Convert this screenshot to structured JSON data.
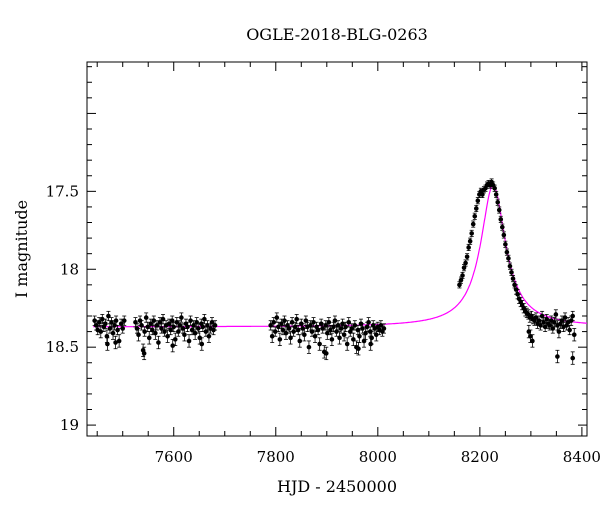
{
  "chart_data": {
    "type": "scatter",
    "title": "OGLE-2018-BLG-0263",
    "xlabel": "HJD - 2450000",
    "ylabel": "I magnitude",
    "xlim": [
      7430,
      8410
    ],
    "ylim": [
      19.07,
      16.67
    ],
    "y_inverted": true,
    "x_ticks": [
      7600,
      7800,
      8000,
      8200,
      8400
    ],
    "x_tick_labels": [
      "7600",
      "7800",
      "8000",
      "8200",
      "8400"
    ],
    "y_ticks": [
      17.5,
      18,
      18.5,
      19
    ],
    "y_tick_labels": [
      "17.5",
      "18",
      "18.5",
      "19"
    ],
    "grid": false,
    "colors": {
      "data": "#000000",
      "model": "#ff00ff"
    },
    "model": {
      "name": "",
      "baseline_mag": 18.37,
      "peak_hjd": 8226,
      "peak_mag": 17.46,
      "width_days": 24
    },
    "series": [
      {
        "name": "",
        "marker": "filled-circle-with-errorbars",
        "points": [
          [
            7445,
            18.33,
            0.03
          ],
          [
            7448,
            18.36,
            0.03
          ],
          [
            7451,
            18.39,
            0.03
          ],
          [
            7454,
            18.34,
            0.03
          ],
          [
            7457,
            18.4,
            0.04
          ],
          [
            7460,
            18.32,
            0.03
          ],
          [
            7463,
            18.37,
            0.03
          ],
          [
            7466,
            18.35,
            0.03
          ],
          [
            7469,
            18.43,
            0.04
          ],
          [
            7472,
            18.3,
            0.03
          ],
          [
            7475,
            18.38,
            0.03
          ],
          [
            7478,
            18.34,
            0.03
          ],
          [
            7481,
            18.41,
            0.04
          ],
          [
            7484,
            18.36,
            0.03
          ],
          [
            7487,
            18.33,
            0.03
          ],
          [
            7490,
            18.39,
            0.03
          ],
          [
            7493,
            18.46,
            0.04
          ],
          [
            7497,
            18.35,
            0.03
          ],
          [
            7500,
            18.38,
            0.03
          ],
          [
            7503,
            18.33,
            0.03
          ],
          [
            7470,
            18.48,
            0.04
          ],
          [
            7486,
            18.47,
            0.04
          ],
          [
            7525,
            18.34,
            0.03
          ],
          [
            7528,
            18.38,
            0.03
          ],
          [
            7531,
            18.42,
            0.04
          ],
          [
            7534,
            18.33,
            0.03
          ],
          [
            7537,
            18.36,
            0.03
          ],
          [
            7540,
            18.52,
            0.04
          ],
          [
            7543,
            18.4,
            0.03
          ],
          [
            7546,
            18.31,
            0.03
          ],
          [
            7549,
            18.37,
            0.03
          ],
          [
            7552,
            18.44,
            0.04
          ],
          [
            7555,
            18.35,
            0.03
          ],
          [
            7558,
            18.39,
            0.03
          ],
          [
            7561,
            18.33,
            0.03
          ],
          [
            7564,
            18.41,
            0.04
          ],
          [
            7567,
            18.36,
            0.03
          ],
          [
            7570,
            18.47,
            0.04
          ],
          [
            7573,
            18.34,
            0.03
          ],
          [
            7576,
            18.38,
            0.03
          ],
          [
            7579,
            18.32,
            0.03
          ],
          [
            7582,
            18.4,
            0.03
          ],
          [
            7585,
            18.36,
            0.03
          ],
          [
            7588,
            18.43,
            0.04
          ],
          [
            7591,
            18.35,
            0.03
          ],
          [
            7594,
            18.39,
            0.03
          ],
          [
            7597,
            18.33,
            0.03
          ],
          [
            7600,
            18.37,
            0.03
          ],
          [
            7603,
            18.45,
            0.04
          ],
          [
            7606,
            18.34,
            0.03
          ],
          [
            7609,
            18.4,
            0.03
          ],
          [
            7612,
            18.36,
            0.03
          ],
          [
            7615,
            18.31,
            0.03
          ],
          [
            7618,
            18.38,
            0.03
          ],
          [
            7621,
            18.42,
            0.04
          ],
          [
            7624,
            18.35,
            0.03
          ],
          [
            7627,
            18.37,
            0.03
          ],
          [
            7630,
            18.46,
            0.04
          ],
          [
            7633,
            18.33,
            0.03
          ],
          [
            7636,
            18.39,
            0.03
          ],
          [
            7639,
            18.36,
            0.03
          ],
          [
            7642,
            18.41,
            0.04
          ],
          [
            7645,
            18.34,
            0.03
          ],
          [
            7648,
            18.38,
            0.03
          ],
          [
            7651,
            18.44,
            0.04
          ],
          [
            7654,
            18.35,
            0.03
          ],
          [
            7657,
            18.37,
            0.03
          ],
          [
            7660,
            18.32,
            0.03
          ],
          [
            7663,
            18.4,
            0.03
          ],
          [
            7666,
            18.36,
            0.03
          ],
          [
            7669,
            18.43,
            0.04
          ],
          [
            7672,
            18.38,
            0.03
          ],
          [
            7675,
            18.34,
            0.03
          ],
          [
            7678,
            18.39,
            0.03
          ],
          [
            7681,
            18.36,
            0.03
          ],
          [
            7542,
            18.54,
            0.04
          ],
          [
            7598,
            18.49,
            0.04
          ],
          [
            7655,
            18.48,
            0.04
          ],
          [
            7790,
            18.36,
            0.03
          ],
          [
            7793,
            18.43,
            0.04
          ],
          [
            7796,
            18.34,
            0.03
          ],
          [
            7799,
            18.4,
            0.03
          ],
          [
            7802,
            18.31,
            0.03
          ],
          [
            7805,
            18.37,
            0.03
          ],
          [
            7808,
            18.45,
            0.04
          ],
          [
            7811,
            18.35,
            0.03
          ],
          [
            7814,
            18.39,
            0.03
          ],
          [
            7817,
            18.33,
            0.03
          ],
          [
            7820,
            18.41,
            0.04
          ],
          [
            7823,
            18.36,
            0.03
          ],
          [
            7826,
            18.38,
            0.03
          ],
          [
            7829,
            18.44,
            0.04
          ],
          [
            7832,
            18.34,
            0.03
          ],
          [
            7835,
            18.4,
            0.03
          ],
          [
            7838,
            18.37,
            0.03
          ],
          [
            7841,
            18.32,
            0.03
          ],
          [
            7844,
            18.39,
            0.03
          ],
          [
            7847,
            18.46,
            0.04
          ],
          [
            7850,
            18.35,
            0.03
          ],
          [
            7853,
            18.38,
            0.03
          ],
          [
            7856,
            18.42,
            0.04
          ],
          [
            7859,
            18.33,
            0.03
          ],
          [
            7862,
            18.37,
            0.03
          ],
          [
            7865,
            18.5,
            0.04
          ],
          [
            7868,
            18.36,
            0.03
          ],
          [
            7871,
            18.4,
            0.03
          ],
          [
            7874,
            18.34,
            0.03
          ],
          [
            7877,
            18.43,
            0.04
          ],
          [
            7880,
            18.37,
            0.03
          ],
          [
            7883,
            18.39,
            0.03
          ],
          [
            7886,
            18.48,
            0.04
          ],
          [
            7889,
            18.35,
            0.03
          ],
          [
            7892,
            18.38,
            0.03
          ],
          [
            7895,
            18.53,
            0.04
          ],
          [
            7898,
            18.36,
            0.03
          ],
          [
            7901,
            18.41,
            0.04
          ],
          [
            7904,
            18.34,
            0.03
          ],
          [
            7907,
            18.39,
            0.03
          ],
          [
            7910,
            18.45,
            0.04
          ],
          [
            7913,
            18.37,
            0.03
          ],
          [
            7916,
            18.33,
            0.03
          ],
          [
            7919,
            18.4,
            0.03
          ],
          [
            7922,
            18.36,
            0.03
          ],
          [
            7925,
            18.44,
            0.04
          ],
          [
            7928,
            18.38,
            0.03
          ],
          [
            7931,
            18.35,
            0.03
          ],
          [
            7934,
            18.42,
            0.04
          ],
          [
            7937,
            18.37,
            0.03
          ],
          [
            7940,
            18.48,
            0.04
          ],
          [
            7943,
            18.34,
            0.03
          ],
          [
            7946,
            18.4,
            0.03
          ],
          [
            7949,
            18.38,
            0.03
          ],
          [
            7952,
            18.45,
            0.04
          ],
          [
            7955,
            18.36,
            0.03
          ],
          [
            7958,
            18.5,
            0.04
          ],
          [
            7961,
            18.39,
            0.03
          ],
          [
            7964,
            18.43,
            0.04
          ],
          [
            7967,
            18.35,
            0.03
          ],
          [
            7970,
            18.38,
            0.03
          ],
          [
            7973,
            18.46,
            0.04
          ],
          [
            7976,
            18.41,
            0.04
          ],
          [
            7979,
            18.37,
            0.03
          ],
          [
            7982,
            18.34,
            0.03
          ],
          [
            7985,
            18.4,
            0.03
          ],
          [
            7988,
            18.44,
            0.04
          ],
          [
            7991,
            18.36,
            0.03
          ],
          [
            7994,
            18.38,
            0.03
          ],
          [
            7997,
            18.42,
            0.04
          ],
          [
            8000,
            18.37,
            0.03
          ],
          [
            8003,
            18.39,
            0.03
          ],
          [
            8006,
            18.36,
            0.03
          ],
          [
            8009,
            18.4,
            0.03
          ],
          [
            8012,
            18.38,
            0.03
          ],
          [
            7899,
            18.54,
            0.04
          ],
          [
            7962,
            18.51,
            0.04
          ],
          [
            7986,
            18.48,
            0.04
          ],
          [
            8160,
            18.1,
            0.02
          ],
          [
            8163,
            18.07,
            0.02
          ],
          [
            8166,
            18.04,
            0.02
          ],
          [
            8169,
            17.99,
            0.02
          ],
          [
            8172,
            17.96,
            0.02
          ],
          [
            8175,
            17.92,
            0.02
          ],
          [
            8178,
            17.86,
            0.02
          ],
          [
            8181,
            17.82,
            0.02
          ],
          [
            8184,
            17.77,
            0.02
          ],
          [
            8187,
            17.71,
            0.02
          ],
          [
            8190,
            17.66,
            0.02
          ],
          [
            8193,
            17.61,
            0.02
          ],
          [
            8196,
            17.56,
            0.02
          ],
          [
            8199,
            17.52,
            0.02
          ],
          [
            8202,
            17.5,
            0.02
          ],
          [
            8205,
            17.52,
            0.02
          ],
          [
            8208,
            17.49,
            0.02
          ],
          [
            8211,
            17.48,
            0.02
          ],
          [
            8214,
            17.46,
            0.02
          ],
          [
            8217,
            17.45,
            0.02
          ],
          [
            8220,
            17.46,
            0.02
          ],
          [
            8223,
            17.44,
            0.02
          ],
          [
            8226,
            17.46,
            0.02
          ],
          [
            8229,
            17.48,
            0.02
          ],
          [
            8232,
            17.52,
            0.02
          ],
          [
            8235,
            17.57,
            0.02
          ],
          [
            8238,
            17.62,
            0.02
          ],
          [
            8241,
            17.68,
            0.02
          ],
          [
            8244,
            17.73,
            0.02
          ],
          [
            8247,
            17.78,
            0.02
          ],
          [
            8250,
            17.84,
            0.02
          ],
          [
            8253,
            17.89,
            0.02
          ],
          [
            8256,
            17.93,
            0.02
          ],
          [
            8259,
            17.98,
            0.02
          ],
          [
            8262,
            18.02,
            0.02
          ],
          [
            8265,
            18.06,
            0.02
          ],
          [
            8268,
            18.1,
            0.02
          ],
          [
            8271,
            18.13,
            0.03
          ],
          [
            8274,
            18.16,
            0.03
          ],
          [
            8277,
            18.19,
            0.03
          ],
          [
            8280,
            18.21,
            0.03
          ],
          [
            8283,
            18.23,
            0.03
          ],
          [
            8286,
            18.25,
            0.03
          ],
          [
            8289,
            18.27,
            0.03
          ],
          [
            8292,
            18.28,
            0.03
          ],
          [
            8295,
            18.29,
            0.03
          ],
          [
            8298,
            18.31,
            0.03
          ],
          [
            8301,
            18.3,
            0.03
          ],
          [
            8304,
            18.32,
            0.03
          ],
          [
            8307,
            18.33,
            0.03
          ],
          [
            8310,
            18.31,
            0.03
          ],
          [
            8313,
            18.35,
            0.03
          ],
          [
            8316,
            18.33,
            0.03
          ],
          [
            8319,
            18.36,
            0.03
          ],
          [
            8322,
            18.3,
            0.03
          ],
          [
            8325,
            18.34,
            0.03
          ],
          [
            8328,
            18.37,
            0.03
          ],
          [
            8331,
            18.32,
            0.03
          ],
          [
            8334,
            18.35,
            0.03
          ],
          [
            8337,
            18.36,
            0.03
          ],
          [
            8340,
            18.33,
            0.03
          ],
          [
            8343,
            18.38,
            0.03
          ],
          [
            8346,
            18.34,
            0.03
          ],
          [
            8349,
            18.29,
            0.03
          ],
          [
            8352,
            18.36,
            0.03
          ],
          [
            8355,
            18.4,
            0.04
          ],
          [
            8358,
            18.35,
            0.03
          ],
          [
            8361,
            18.33,
            0.03
          ],
          [
            8364,
            18.37,
            0.03
          ],
          [
            8367,
            18.31,
            0.03
          ],
          [
            8370,
            18.36,
            0.03
          ],
          [
            8373,
            18.34,
            0.03
          ],
          [
            8376,
            18.39,
            0.03
          ],
          [
            8379,
            18.33,
            0.03
          ],
          [
            8382,
            18.3,
            0.03
          ],
          [
            8296,
            18.4,
            0.04
          ],
          [
            8299,
            18.43,
            0.04
          ],
          [
            8303,
            18.46,
            0.04
          ],
          [
            8352,
            18.56,
            0.04
          ],
          [
            8382,
            18.57,
            0.04
          ],
          [
            8385,
            18.42,
            0.04
          ]
        ]
      }
    ]
  }
}
